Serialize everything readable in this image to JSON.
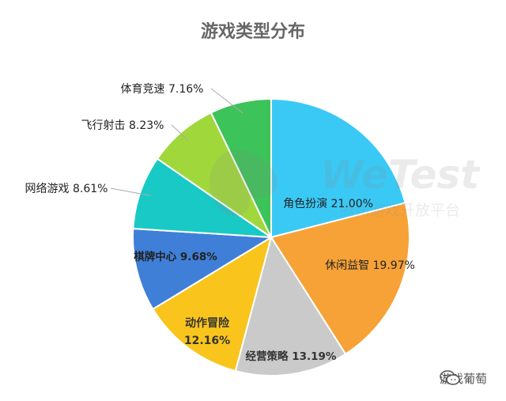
{
  "chart_data": {
    "type": "pie",
    "title": "游戏类型分布",
    "slices": [
      {
        "label": "角色扮演",
        "value_text": "21.00%",
        "value": 21.0,
        "color": "#3AC9F5"
      },
      {
        "label": "休闲益智",
        "value_text": "19.97%",
        "value": 19.97,
        "color": "#F7A237"
      },
      {
        "label": "经营策略",
        "value_text": "13.19%",
        "value": 13.19,
        "color": "#CACACA"
      },
      {
        "label": "动作冒险",
        "value_text": "12.16%",
        "value": 12.16,
        "color": "#F9C51C"
      },
      {
        "label": "棋牌中心",
        "value_text": "9.68%",
        "value": 9.68,
        "color": "#3F7FD8"
      },
      {
        "label": "网络游戏",
        "value_text": "8.61%",
        "value": 8.61,
        "color": "#19C9C5"
      },
      {
        "label": "飞行射击",
        "value_text": "8.23%",
        "value": 8.23,
        "color": "#A0D83C"
      },
      {
        "label": "体育竞速",
        "value_text": "7.16%",
        "value": 7.16,
        "color": "#3CC35A"
      }
    ]
  },
  "watermark": {
    "brand": "WeTest",
    "subtitle": "腾讯游戏开放平台"
  },
  "footer": {
    "account": "游戏葡萄",
    "icon": "wechat-icon"
  }
}
